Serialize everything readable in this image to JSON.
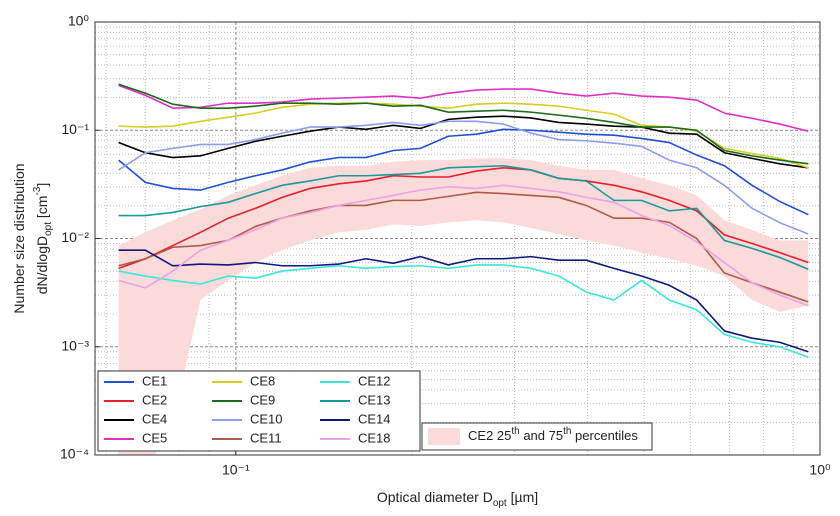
{
  "chart_data": {
    "type": "line",
    "log_x": true,
    "log_y": true,
    "grid": "major-minor",
    "xlim": [
      0.0574,
      1
    ],
    "ylim": [
      0.0001,
      1
    ],
    "xticks": [
      {
        "value": 0.1,
        "label": "10⁻¹"
      },
      {
        "value": 1,
        "label": "10⁰"
      }
    ],
    "yticks": [
      {
        "value": 0.0001,
        "label": "10⁻⁴"
      },
      {
        "value": 0.001,
        "label": "10⁻³"
      },
      {
        "value": 0.01,
        "label": "10⁻²"
      },
      {
        "value": 0.1,
        "label": "10⁻¹"
      },
      {
        "value": 1,
        "label": "10⁰"
      }
    ],
    "x_label": [
      {
        "text": "Optical diameter D"
      },
      {
        "text": "opt",
        "sub": true
      },
      {
        "text": " [µm]"
      }
    ],
    "y_label": [
      [
        {
          "text": "Number size distribution"
        }
      ],
      [
        {
          "text": "dN/dlogD"
        },
        {
          "text": "opt",
          "sub": true
        },
        {
          "text": " [cm"
        },
        {
          "text": "-3",
          "sup": true
        },
        {
          "text": "]"
        }
      ]
    ],
    "x": [
      0.063,
      0.07,
      0.078,
      0.087,
      0.097,
      0.108,
      0.12,
      0.134,
      0.15,
      0.167,
      0.186,
      0.207,
      0.231,
      0.258,
      0.287,
      0.32,
      0.357,
      0.398,
      0.444,
      0.495,
      0.552,
      0.615,
      0.686,
      0.765,
      0.853,
      0.955
    ],
    "band": {
      "color": "#fbdada",
      "label": [
        {
          "text": "CE2 25"
        },
        {
          "text": "th",
          "sup": true
        },
        {
          "text": " and 75"
        },
        {
          "text": "th",
          "sup": true
        },
        {
          "text": " percentiles"
        }
      ],
      "upper": [
        0.0086,
        0.0114,
        0.0147,
        0.0186,
        0.025,
        0.031,
        0.038,
        0.045,
        0.047,
        0.047,
        0.051,
        0.053,
        0.053,
        0.055,
        0.055,
        0.053,
        0.047,
        0.043,
        0.043,
        0.036,
        0.031,
        0.025,
        0.0147,
        0.012,
        0.0096,
        0.0096
      ],
      "lower": [
        7e-05,
        7e-05,
        0.0002,
        0.0027,
        0.0041,
        0.006,
        0.0078,
        0.0096,
        0.0114,
        0.012,
        0.0135,
        0.013,
        0.0141,
        0.0147,
        0.0141,
        0.0125,
        0.011,
        0.0096,
        0.0086,
        0.0074,
        0.0065,
        0.0056,
        0.0045,
        0.0027,
        0.0021,
        0.0024
      ]
    },
    "series": [
      {
        "name": "CE1",
        "color": "#1f4fd8",
        "values": [
          0.053,
          0.033,
          0.029,
          0.028,
          0.033,
          0.038,
          0.043,
          0.051,
          0.056,
          0.056,
          0.065,
          0.068,
          0.088,
          0.092,
          0.102,
          0.1,
          0.096,
          0.092,
          0.09,
          0.084,
          0.077,
          0.059,
          0.047,
          0.031,
          0.022,
          0.0166
        ]
      },
      {
        "name": "CE2",
        "color": "#e8202a",
        "values": [
          0.0053,
          0.0065,
          0.0086,
          0.0114,
          0.0154,
          0.019,
          0.024,
          0.029,
          0.032,
          0.034,
          0.038,
          0.037,
          0.037,
          0.042,
          0.045,
          0.043,
          0.036,
          0.034,
          0.031,
          0.027,
          0.0225,
          0.018,
          0.0108,
          0.009,
          0.0074,
          0.006
        ]
      },
      {
        "name": "CE4",
        "color": "#000000",
        "values": [
          0.077,
          0.062,
          0.056,
          0.058,
          0.068,
          0.079,
          0.088,
          0.098,
          0.107,
          0.102,
          0.111,
          0.104,
          0.126,
          0.132,
          0.135,
          0.13,
          0.118,
          0.114,
          0.109,
          0.107,
          0.094,
          0.092,
          0.062,
          0.055,
          0.049,
          0.045
        ]
      },
      {
        "name": "CE5",
        "color": "#e030c8",
        "values": [
          0.26,
          0.21,
          0.16,
          0.163,
          0.178,
          0.178,
          0.182,
          0.194,
          0.198,
          0.202,
          0.207,
          0.198,
          0.22,
          0.235,
          0.24,
          0.24,
          0.22,
          0.207,
          0.22,
          0.207,
          0.202,
          0.19,
          0.144,
          0.129,
          0.114,
          0.098
        ]
      },
      {
        "name": "CE8",
        "color": "#d8cc20",
        "values": [
          0.109,
          0.107,
          0.109,
          0.121,
          0.132,
          0.144,
          0.163,
          0.174,
          0.178,
          0.178,
          0.174,
          0.167,
          0.16,
          0.174,
          0.178,
          0.174,
          0.167,
          0.153,
          0.141,
          0.111,
          0.107,
          0.098,
          0.068,
          0.061,
          0.055,
          0.045
        ]
      },
      {
        "name": "CE9",
        "color": "#1a6a1a",
        "values": [
          0.266,
          0.22,
          0.174,
          0.16,
          0.16,
          0.167,
          0.178,
          0.178,
          0.174,
          0.178,
          0.167,
          0.17,
          0.147,
          0.15,
          0.153,
          0.147,
          0.138,
          0.129,
          0.118,
          0.107,
          0.107,
          0.1,
          0.065,
          0.058,
          0.053,
          0.049
        ]
      },
      {
        "name": "CE10",
        "color": "#8c9cf0",
        "values": [
          0.043,
          0.062,
          0.068,
          0.074,
          0.074,
          0.082,
          0.094,
          0.107,
          0.107,
          0.111,
          0.118,
          0.111,
          0.121,
          0.121,
          0.114,
          0.094,
          0.082,
          0.08,
          0.076,
          0.071,
          0.053,
          0.045,
          0.031,
          0.019,
          0.014,
          0.011
        ]
      },
      {
        "name": "CE11",
        "color": "#b05a48",
        "values": [
          0.0056,
          0.0065,
          0.0083,
          0.0086,
          0.0096,
          0.0129,
          0.0154,
          0.018,
          0.0202,
          0.0202,
          0.0225,
          0.0225,
          0.0245,
          0.0267,
          0.026,
          0.025,
          0.024,
          0.0202,
          0.0154,
          0.0154,
          0.0141,
          0.01,
          0.0048,
          0.0039,
          0.0032,
          0.0026
        ]
      },
      {
        "name": "CE12",
        "color": "#38e8d8",
        "values": [
          0.005,
          0.0045,
          0.0041,
          0.0038,
          0.0045,
          0.0043,
          0.005,
          0.0053,
          0.0056,
          0.0053,
          0.0055,
          0.0056,
          0.0053,
          0.0057,
          0.0057,
          0.0053,
          0.0045,
          0.0032,
          0.0027,
          0.0041,
          0.0027,
          0.0022,
          0.0013,
          0.0011,
          0.001,
          0.0008
        ]
      },
      {
        "name": "CE13",
        "color": "#189a9a",
        "values": [
          0.0163,
          0.0163,
          0.0174,
          0.0197,
          0.0216,
          0.026,
          0.031,
          0.034,
          0.038,
          0.038,
          0.039,
          0.04,
          0.045,
          0.046,
          0.047,
          0.043,
          0.036,
          0.034,
          0.0225,
          0.0225,
          0.018,
          0.019,
          0.0096,
          0.0081,
          0.0067,
          0.0052
        ]
      },
      {
        "name": "CE14",
        "color": "#0c1a80",
        "values": [
          0.0078,
          0.0078,
          0.0056,
          0.0058,
          0.0057,
          0.006,
          0.0056,
          0.0056,
          0.0058,
          0.0065,
          0.0059,
          0.0068,
          0.0057,
          0.0065,
          0.0065,
          0.0068,
          0.0063,
          0.0063,
          0.0053,
          0.0045,
          0.0037,
          0.0027,
          0.0014,
          0.0012,
          0.0011,
          0.0009
        ]
      },
      {
        "name": "CE18",
        "color": "#f0a0e8",
        "values": [
          0.0041,
          0.0035,
          0.005,
          0.0078,
          0.0096,
          0.012,
          0.0154,
          0.0174,
          0.0202,
          0.0225,
          0.025,
          0.028,
          0.03,
          0.029,
          0.031,
          0.029,
          0.027,
          0.024,
          0.0216,
          0.0163,
          0.0132,
          0.0093,
          0.006,
          0.0039,
          0.003,
          0.0024
        ]
      }
    ]
  }
}
